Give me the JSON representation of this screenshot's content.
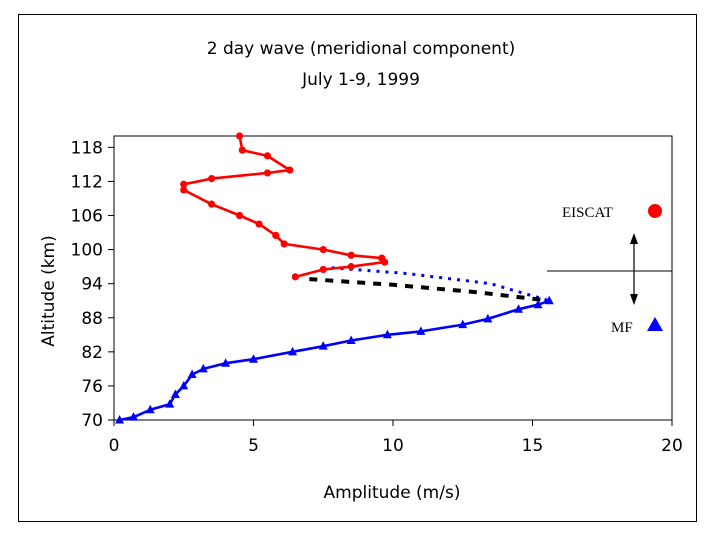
{
  "chart_data": {
    "type": "line",
    "title": "2 day wave (meridional component)",
    "subtitle": "July 1-9, 1999",
    "xlabel": "Amplitude (m/s)",
    "ylabel": "Altitude (km)",
    "xlim": [
      0,
      20
    ],
    "ylim": [
      70,
      120
    ],
    "xticks": [
      0,
      5,
      10,
      15,
      20
    ],
    "yticks": [
      70,
      76,
      82,
      88,
      94,
      100,
      106,
      112,
      118
    ],
    "grid": false,
    "legend_position": "right",
    "series": [
      {
        "name": "EISCAT",
        "color": "#ff0000",
        "marker": "circle",
        "points": [
          [
            4.5,
            120
          ],
          [
            4.6,
            117.5
          ],
          [
            5.5,
            116.5
          ],
          [
            6.3,
            114
          ],
          [
            5.5,
            113.5
          ],
          [
            3.5,
            112.5
          ],
          [
            2.5,
            111.5
          ],
          [
            2.5,
            110.5
          ],
          [
            3.5,
            108
          ],
          [
            4.5,
            106
          ],
          [
            5.2,
            104.5
          ],
          [
            5.8,
            102.5
          ],
          [
            6.1,
            101
          ],
          [
            7.5,
            100
          ],
          [
            8.5,
            99
          ],
          [
            9.6,
            98.5
          ],
          [
            9.7,
            97.8
          ],
          [
            8.5,
            97
          ],
          [
            7.5,
            96.5
          ],
          [
            6.5,
            95.2
          ]
        ]
      },
      {
        "name": "MF",
        "color": "#0000ff",
        "marker": "triangle",
        "points": [
          [
            0.2,
            70
          ],
          [
            0.7,
            70.5
          ],
          [
            1.3,
            71.8
          ],
          [
            2,
            72.8
          ],
          [
            2.2,
            74.5
          ],
          [
            2.5,
            76
          ],
          [
            2.8,
            78
          ],
          [
            3.2,
            79
          ],
          [
            4,
            80
          ],
          [
            5,
            80.7
          ],
          [
            6.4,
            82
          ],
          [
            7.5,
            83
          ],
          [
            8.5,
            84
          ],
          [
            9.8,
            85
          ],
          [
            11,
            85.6
          ],
          [
            12.5,
            86.8
          ],
          [
            13.4,
            87.8
          ],
          [
            14.5,
            89.5
          ],
          [
            15.2,
            90.3
          ],
          [
            15.6,
            91
          ]
        ]
      }
    ],
    "overlay_lines": [
      {
        "style": "dotted",
        "color": "#0000ff",
        "points": [
          [
            7.8,
            96.8
          ],
          [
            10.5,
            95.8
          ],
          [
            13.5,
            94
          ],
          [
            15.6,
            91
          ]
        ]
      },
      {
        "style": "dashed",
        "color": "#000000",
        "points": [
          [
            7,
            94.8
          ],
          [
            10,
            93.8
          ],
          [
            13,
            92.5
          ],
          [
            15.6,
            91
          ]
        ]
      }
    ],
    "annotations": {
      "legend_eiscat": "EISCAT",
      "legend_mf": "MF"
    }
  }
}
